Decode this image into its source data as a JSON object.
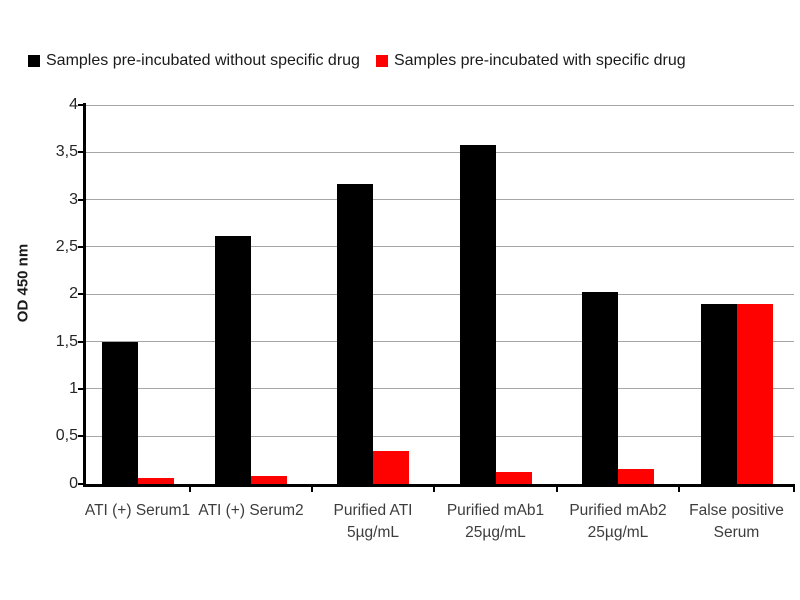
{
  "chart_data": {
    "type": "bar",
    "title": "",
    "xlabel": "",
    "ylabel": "OD 450 nm",
    "ylim": [
      0,
      4
    ],
    "ytick_step": 0.5,
    "ytick_labels": [
      "0",
      "0,5",
      "1",
      "1,5",
      "2",
      "2,5",
      "3",
      "3,5",
      "4"
    ],
    "decimal_separator": ",",
    "grid": "horizontal",
    "legend_position": "top",
    "categories": [
      "ATI (+) Serum1",
      "ATI (+) Serum2",
      "Purified ATI\n5µg/mL",
      "Purified mAb1\n25µg/mL",
      "Purified mAb2\n25µg/mL",
      "False positive\nSerum"
    ],
    "series": [
      {
        "name": "Samples pre-incubated without specific drug",
        "color": "#000000",
        "values": [
          1.5,
          2.62,
          3.16,
          3.58,
          2.02,
          1.9
        ]
      },
      {
        "name": "Samples pre-incubated with specific drug",
        "color": "#fe0101",
        "values": [
          0.06,
          0.08,
          0.34,
          0.12,
          0.15,
          1.9
        ]
      }
    ],
    "colors": {
      "gridline": "#a6a6a6",
      "axis": "#000000",
      "axis_label_text": "#3d3d3d",
      "legend_text": "#1a1a1a",
      "background": "#ffffff"
    }
  }
}
